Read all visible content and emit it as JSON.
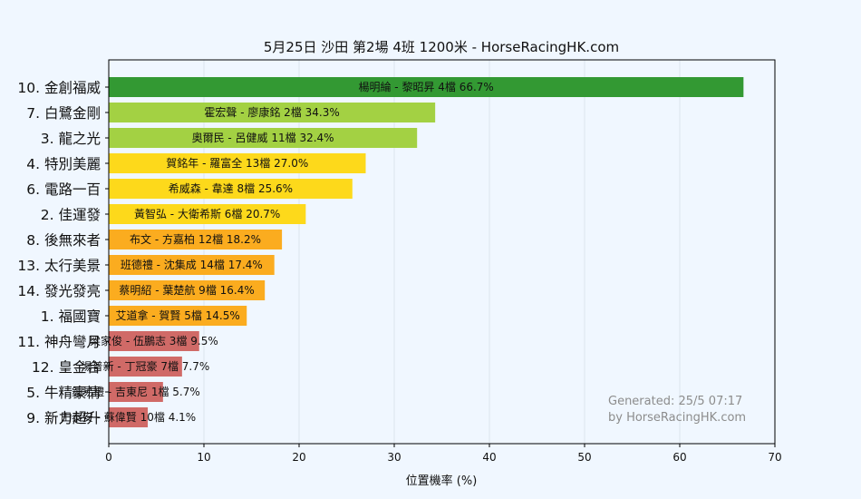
{
  "chart_data": {
    "type": "bar",
    "orientation": "horizontal",
    "title": "5月25日  沙田  第2場  4班  1200米 - HorseRacingHK.com",
    "xlabel": "位置機率 (%)",
    "xlim": [
      0,
      70
    ],
    "xticks": [
      0,
      10,
      20,
      30,
      40,
      50,
      60,
      70
    ],
    "grid": "vertical",
    "categories": [
      "10. 金創福威",
      "7. 白鷺金剛",
      "3. 龍之光",
      "4. 特別美麗",
      "6. 電路一百",
      "2. 佳運發",
      "8. 後無來者",
      "13. 太行美景",
      "14. 發光發亮",
      "1. 福國寶",
      "11. 神舟彎月",
      "12. 皇金合",
      "5. 牛精豪情",
      "9. 新力超升"
    ],
    "values": [
      66.7,
      34.3,
      32.4,
      27.0,
      25.6,
      20.7,
      18.2,
      17.4,
      16.4,
      14.5,
      9.5,
      7.7,
      5.7,
      4.1
    ],
    "bar_labels": [
      "楊明綸 - 黎昭昇 4檔  66.7%",
      "霍宏聲 - 廖康銘 2檔  34.3%",
      "奧爾民 - 呂健威 11檔  32.4%",
      "賀銘年 - 羅富全 13檔  27.0%",
      "希威森 - 韋達 8檔  25.6%",
      "黃智弘 - 大衛希斯 6檔  20.7%",
      "布文 - 方嘉柏 12檔  18.2%",
      "班德禮 - 沈集成 14檔  17.4%",
      "蔡明紹 - 葉楚航 9檔  16.4%",
      "艾道拿 - 賀賢 5檔  14.5%",
      "梁家俊 - 伍鵬志 3檔  9.5%",
      "湯普新 - 丁冠豪 7檔  7.7%",
      "鍾易禮 - 吉東尼 1檔  5.7%",
      "田泰安 - 蘇偉賢 10檔  4.1%"
    ],
    "colors": [
      "#339933",
      "#a3d143",
      "#a3d143",
      "#fdd91b",
      "#fdd91b",
      "#fdd91b",
      "#fbac1f",
      "#fbac1f",
      "#fbac1f",
      "#fbac1f",
      "#d06a67",
      "#d06a67",
      "#d06a67",
      "#d06a67"
    ]
  },
  "watermark": {
    "line1": "Generated: 25/5 07:17",
    "line2": "by HorseRacingHK.com"
  }
}
